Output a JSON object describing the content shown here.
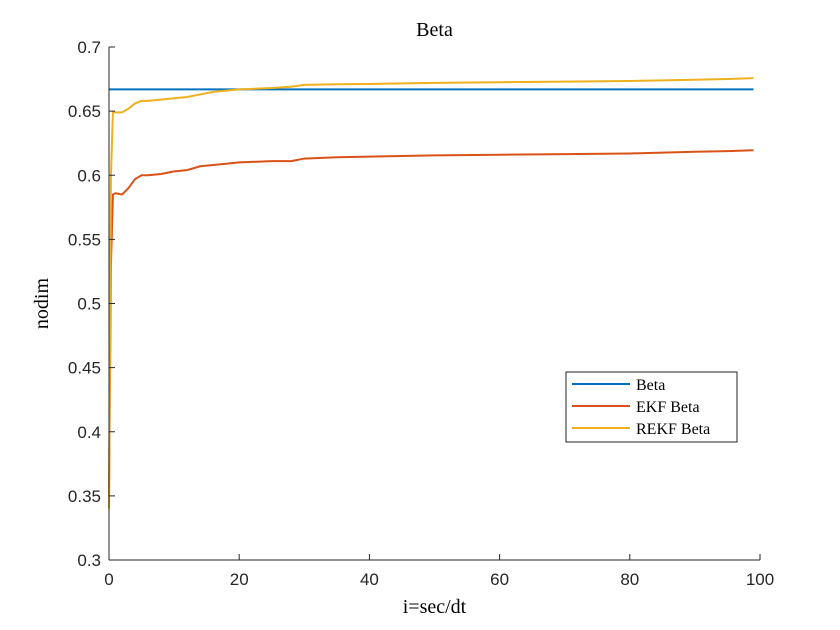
{
  "chart_data": {
    "type": "line",
    "title": "Beta",
    "xlabel": "i=sec/dt",
    "ylabel": "nodim",
    "xlim": [
      0,
      100
    ],
    "ylim": [
      0.3,
      0.7
    ],
    "xticks": [
      "0",
      "20",
      "40",
      "60",
      "80",
      "100"
    ],
    "yticks": [
      "0.3",
      "0.35",
      "0.4",
      "0.45",
      "0.5",
      "0.55",
      "0.6",
      "0.65",
      "0.7"
    ],
    "grid": false,
    "legend_position": "right-lower-middle",
    "series": [
      {
        "name": "Beta",
        "color": "#0072BD",
        "x": [
          0,
          99
        ],
        "y": [
          0.667,
          0.667
        ]
      },
      {
        "name": "EKF Beta",
        "color": "#D95319",
        "x": [
          0,
          0.3,
          0.6,
          1,
          2,
          3,
          4,
          5,
          6,
          8,
          10,
          12,
          14,
          16,
          18,
          20,
          25,
          28,
          30,
          35,
          40,
          50,
          60,
          70,
          80,
          90,
          95,
          99
        ],
        "y": [
          0.35,
          0.53,
          0.585,
          0.586,
          0.585,
          0.59,
          0.597,
          0.6,
          0.6,
          0.601,
          0.603,
          0.604,
          0.607,
          0.608,
          0.609,
          0.61,
          0.611,
          0.611,
          0.613,
          0.614,
          0.6145,
          0.6155,
          0.616,
          0.6165,
          0.617,
          0.6183,
          0.6188,
          0.6195
        ]
      },
      {
        "name": "REKF Beta",
        "color": "#EDB120",
        "x": [
          0,
          0.3,
          0.6,
          1,
          2,
          3,
          4,
          5,
          6,
          8,
          10,
          12,
          14,
          16,
          18,
          20,
          25,
          28,
          30,
          35,
          40,
          50,
          60,
          70,
          80,
          90,
          95,
          99
        ],
        "y": [
          0.34,
          0.6,
          0.649,
          0.649,
          0.649,
          0.652,
          0.656,
          0.658,
          0.658,
          0.659,
          0.66,
          0.661,
          0.663,
          0.665,
          0.666,
          0.667,
          0.668,
          0.669,
          0.6705,
          0.671,
          0.6712,
          0.672,
          0.6725,
          0.673,
          0.6735,
          0.6745,
          0.675,
          0.6757
        ]
      }
    ]
  }
}
